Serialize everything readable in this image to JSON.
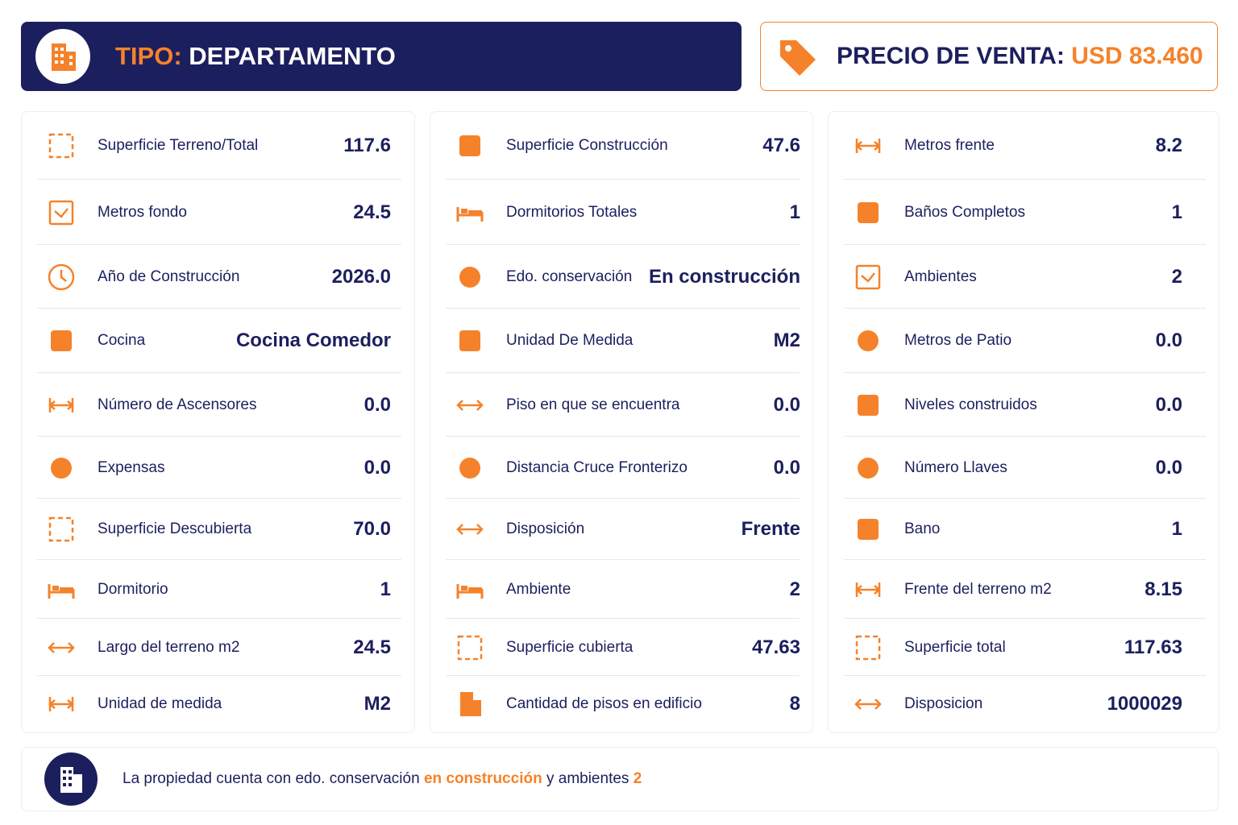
{
  "header": {
    "tipo_label": "TIPO:",
    "tipo_value": "DEPARTAMENTO",
    "precio_label": "PRECIO DE VENTA:",
    "precio_value": "USD 83.460"
  },
  "columns": [
    [
      {
        "label": "Superficie Terreno/Total",
        "value": "117.6"
      },
      {
        "label": "Metros fondo",
        "value": "24.5"
      },
      {
        "label": "Año de Construcción",
        "value": "2026.0"
      },
      {
        "label": "Cocina",
        "value": "Cocina Comedor"
      },
      {
        "label": "Número de Ascensores",
        "value": "0.0"
      },
      {
        "label": "Expensas",
        "value": "0.0"
      },
      {
        "label": "Superficie Descubierta",
        "value": "70.0"
      },
      {
        "label": "Dormitorio",
        "value": "1"
      },
      {
        "label": "Largo del terreno m2",
        "value": "24.5"
      },
      {
        "label": "Unidad de medida",
        "value": "M2"
      }
    ],
    [
      {
        "label": "Superficie Construcción",
        "value": "47.6"
      },
      {
        "label": "Dormitorios Totales",
        "value": "1"
      },
      {
        "label": "Edo. conservación",
        "value": "En construcción"
      },
      {
        "label": "Unidad De Medida",
        "value": "M2"
      },
      {
        "label": "Piso en que se encuentra",
        "value": "0.0"
      },
      {
        "label": "Distancia Cruce Fronterizo",
        "value": "0.0"
      },
      {
        "label": "Disposición",
        "value": "Frente"
      },
      {
        "label": "Ambiente",
        "value": "2"
      },
      {
        "label": "Superficie cubierta",
        "value": "47.63"
      },
      {
        "label": "Cantidad de pisos en edificio",
        "value": "8"
      }
    ],
    [
      {
        "label": "Metros frente",
        "value": "8.2"
      },
      {
        "label": "Baños Completos",
        "value": "1"
      },
      {
        "label": "Ambientes",
        "value": "2"
      },
      {
        "label": "Metros de Patio",
        "value": "0.0"
      },
      {
        "label": "Niveles construidos",
        "value": "0.0"
      },
      {
        "label": "Número Llaves",
        "value": "0.0"
      },
      {
        "label": "Bano",
        "value": "1"
      },
      {
        "label": "Frente del terreno m2",
        "value": "8.15"
      },
      {
        "label": "Superficie total",
        "value": "117.63"
      },
      {
        "label": "Disposicion",
        "value": "1000029"
      }
    ]
  ],
  "footer": {
    "text": "La propiedad cuenta con edo. conservación",
    "highlight": "en construcción",
    "text2": "y ambientes",
    "highlight2": "2"
  }
}
